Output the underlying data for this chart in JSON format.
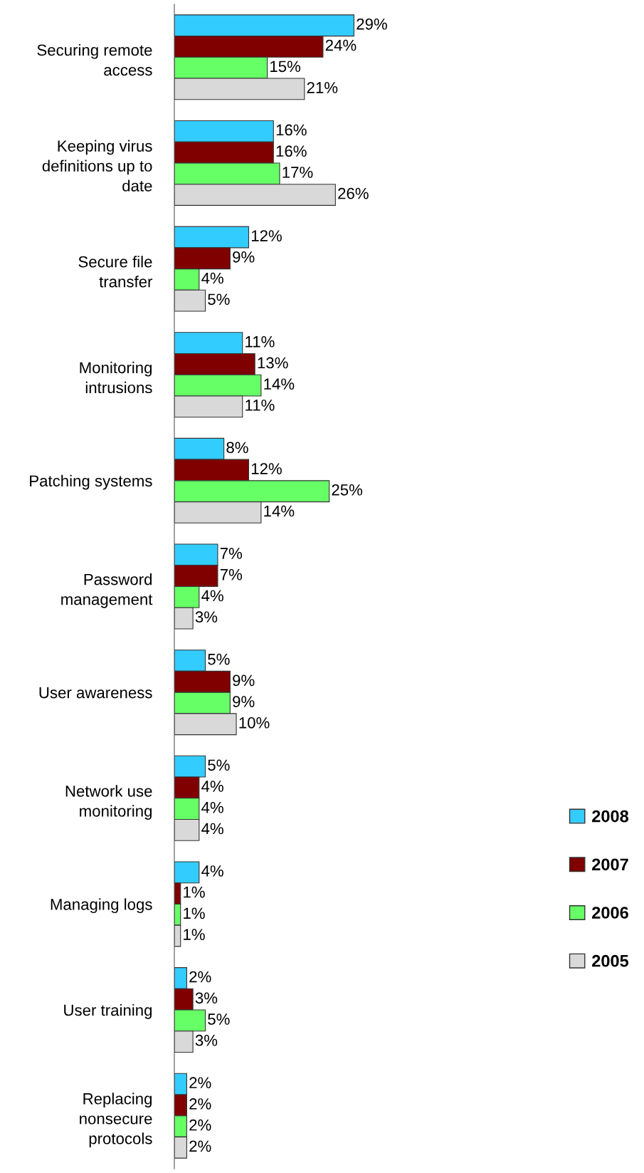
{
  "chart_data": {
    "type": "bar",
    "orientation": "horizontal",
    "tick_labels": "y",
    "legend": "bottom right",
    "grid": false,
    "categories": [
      "Securing remote\naccess",
      "Keeping virus\ndefinitions up to\ndate",
      "Secure file\ntransfer",
      "Monitoring\nintrusions",
      "Patching systems",
      "Password\nmanagement",
      "User awareness",
      "Network use\nmonitoring",
      "Managing logs",
      "User training",
      "Replacing\nnonsecure\nprotocols"
    ],
    "series": [
      {
        "name": "2008",
        "color": "#33ccff",
        "values": [
          29,
          16,
          12,
          11,
          8,
          7,
          5,
          5,
          4,
          2,
          2
        ],
        "value_labels": [
          "29%",
          "16%",
          "12%",
          "11%",
          "8%",
          "7%",
          "5%",
          "5%",
          "4%",
          "2%",
          "2%"
        ]
      },
      {
        "name": "2007",
        "color": "#800000",
        "values": [
          24,
          16,
          9,
          13,
          12,
          7,
          9,
          4,
          1,
          3,
          2
        ],
        "value_labels": [
          "24%",
          "16%",
          "9%",
          "13%",
          "12%",
          "7%",
          "9%",
          "4%",
          "1%",
          "3%",
          "2%"
        ]
      },
      {
        "name": "2006",
        "color": "#66ff66",
        "values": [
          15,
          17,
          4,
          14,
          25,
          4,
          9,
          4,
          1,
          5,
          2
        ],
        "value_labels": [
          "15%",
          "17%",
          "4%",
          "14%",
          "25%",
          "4%",
          "9%",
          "4%",
          "1%",
          "5%",
          "2%"
        ]
      },
      {
        "name": "2005",
        "color": "#d9d9d9",
        "values": [
          21,
          26,
          5,
          11,
          14,
          3,
          10,
          4,
          1,
          3,
          2
        ],
        "value_labels": [
          "21%",
          "26%",
          "5%",
          "11%",
          "14%",
          "3%",
          "10%",
          "4%",
          "1%",
          "3%",
          "2%"
        ]
      }
    ]
  }
}
